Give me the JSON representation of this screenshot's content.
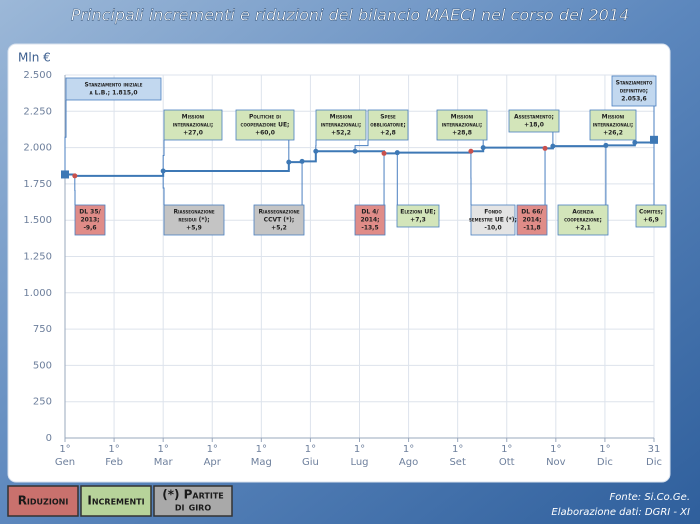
{
  "title": "Principali incrementi  e riduzioni del bilancio MAECI nel corso del 2014",
  "chart_data": {
    "type": "line",
    "y_label": "Mln €",
    "line_shape": "hv",
    "end_marker": "square",
    "color": "#3d78b5",
    "x": [
      0,
      0.2,
      2,
      4.56,
      4.83,
      5.11,
      5.91,
      6.5,
      6.77,
      8.27,
      8.52,
      9.78,
      9.94,
      11.02,
      11.61,
      12
    ],
    "values": [
      1815,
      1805,
      1839,
      1900,
      1905,
      1975,
      1975,
      1960,
      1965,
      1975,
      2000,
      1995,
      2010,
      2015,
      2035,
      2053.6
    ],
    "marker_colors": [
      "#3d78b5",
      "#c9514d",
      "#3d78b5",
      "#3d78b5",
      "#3d78b5",
      "#3d78b5",
      "#3d78b5",
      "#c9514d",
      "#3d78b5",
      "#c9514d",
      "#3d78b5",
      "#c9514d",
      "#3d78b5",
      "#3d78b5",
      "#3d78b5",
      "#3d78b5"
    ],
    "xlim": [
      0,
      12
    ],
    "xticks": [
      {
        "value": 0,
        "label": "1°"
      },
      {
        "value": 1,
        "label": "1°"
      },
      {
        "value": 2,
        "label": "1°"
      },
      {
        "value": 3,
        "label": "1°"
      },
      {
        "value": 4,
        "label": "1°"
      },
      {
        "value": 5,
        "label": "1°"
      },
      {
        "value": 6,
        "label": "1°"
      },
      {
        "value": 7,
        "label": "1°"
      },
      {
        "value": 8,
        "label": "1°"
      },
      {
        "value": 9,
        "label": "1°"
      },
      {
        "value": 10,
        "label": "1°"
      },
      {
        "value": 11,
        "label": "1°"
      },
      {
        "value": 12,
        "label": "31"
      }
    ],
    "month_labels": [
      "Gen",
      "Feb",
      "Mar",
      "Apr",
      "Mag",
      "Giu",
      "Lug",
      "Ago",
      "Set",
      "Ott",
      "Nov",
      "Dic",
      "Dic"
    ],
    "ylim": [
      0,
      2500
    ],
    "yticks": [
      0,
      250,
      500,
      750,
      {
        "value": 1000,
        "label": "1.000"
      },
      {
        "value": 1250,
        "label": "1.250"
      },
      {
        "value": 1500,
        "label": "1.500"
      },
      {
        "value": 1750,
        "label": "1.750"
      },
      {
        "value": 2000,
        "label": "2.000"
      },
      {
        "value": 2250,
        "label": "2.250"
      },
      {
        "value": 2500,
        "label": "2.500"
      }
    ],
    "grid": true,
    "annotations": [
      {
        "lines": [
          "Stanziamento iniziale",
          "a L.B.; 1.815,0"
        ],
        "color": "#c2d8ef"
      },
      {
        "lines": [
          "DL 35/",
          "2013;",
          "-9,6"
        ],
        "color": "#e08c88"
      },
      {
        "lines": [
          "Missioni",
          "internazionali;",
          "+27,0"
        ],
        "color": "#d3e5ba"
      },
      {
        "lines": [
          "Riassegnazione",
          "residui (*);",
          "+5,9"
        ],
        "color": "#c4c4c4"
      },
      {
        "lines": [
          "Politiche di",
          "cooperazione UE;",
          "+60,0"
        ],
        "color": "#d3e5ba"
      },
      {
        "lines": [
          "Riassegnazione",
          "CCVT (*);",
          "+5,2"
        ],
        "color": "#c4c4c4"
      },
      {
        "lines": [
          "Missioni",
          "internazionali;",
          "+52,2"
        ],
        "color": "#d3e5ba"
      },
      {
        "lines": [
          "Spese",
          "obbligatorie;",
          "+2,8"
        ],
        "color": "#d3e5ba"
      },
      {
        "lines": [
          "DL 4/",
          "2014;",
          "-13,5"
        ],
        "color": "#e08c88"
      },
      {
        "lines": [
          "Elezioni UE;",
          "+7,3"
        ],
        "color": "#d3e5ba"
      },
      {
        "lines": [
          "Missioni",
          "internazionali;",
          "+28,8"
        ],
        "color": "#d3e5ba"
      },
      {
        "lines": [
          "Fondo",
          "semestre UE (*);",
          "-10,0"
        ],
        "color": "#e4e4e4"
      },
      {
        "lines": [
          "DL 66/",
          "2014;",
          "-11,8"
        ],
        "color": "#e08c88"
      },
      {
        "lines": [
          "Assestamento;",
          "+18,0"
        ],
        "color": "#d3e5ba"
      },
      {
        "lines": [
          "Agenzia",
          "cooperazione;",
          "+2,1"
        ],
        "color": "#d3e5ba"
      },
      {
        "lines": [
          "Missioni",
          "internazionali;",
          "+26,2"
        ],
        "color": "#d3e5ba"
      },
      {
        "lines": [
          "Stanziamento",
          "definitivo;",
          "2.053,6"
        ],
        "color": "#c2d8ef"
      },
      {
        "lines": [
          "Comites;",
          "+6,9"
        ],
        "color": "#d3e5ba"
      }
    ]
  },
  "legend": [
    {
      "lines": [
        "Riduzioni"
      ],
      "color": "#c9716d"
    },
    {
      "lines": [
        "Incrementi"
      ],
      "color": "#b7d39a"
    },
    {
      "lines": [
        "(*) Partite",
        "di giro"
      ],
      "color": "#a9a9a9"
    }
  ],
  "source": [
    "Fonte: Si.Co.Ge.",
    "Elaborazione dati: DGRI - XI"
  ]
}
